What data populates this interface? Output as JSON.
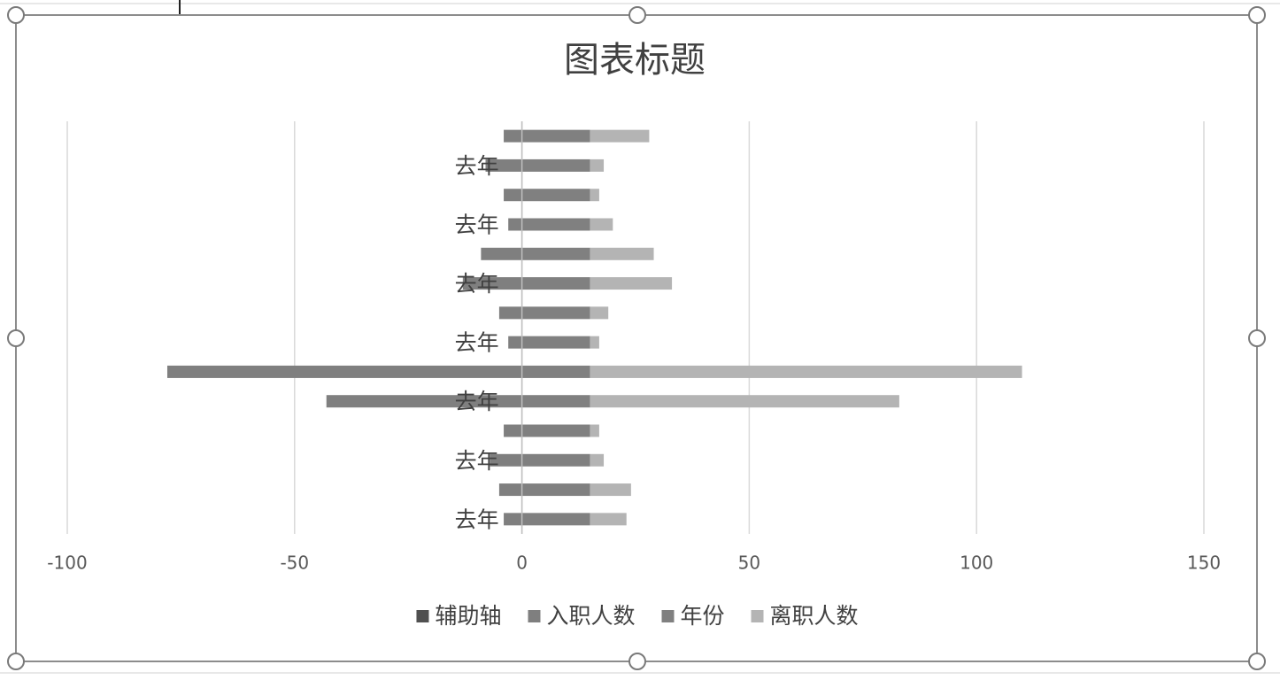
{
  "chart_data": {
    "type": "bar",
    "orientation": "horizontal",
    "stacked": true,
    "title": "图表标题",
    "categories": [
      null,
      "去年",
      null,
      "去年",
      null,
      "去年",
      null,
      "去年",
      null,
      "去年",
      null,
      "去年",
      null,
      "去年"
    ],
    "series": [
      {
        "name": "辅助轴",
        "color": "#505050",
        "values": [
          0,
          0,
          0,
          0,
          0,
          0,
          0,
          0,
          0,
          0,
          0,
          0,
          0,
          0
        ]
      },
      {
        "name": "入职人数",
        "color": "#7f7f7f",
        "values": [
          -4,
          -8,
          -4,
          -3,
          -9,
          -13,
          -5,
          -3,
          -78,
          -43,
          -4,
          -7,
          -5,
          -4
        ]
      },
      {
        "name": "年份",
        "color": "#808080",
        "values": [
          15,
          15,
          15,
          15,
          15,
          15,
          15,
          15,
          15,
          15,
          15,
          15,
          15,
          15
        ]
      },
      {
        "name": "离职人数",
        "color": "#b4b4b4",
        "values": [
          13,
          3,
          2,
          5,
          14,
          18,
          4,
          2,
          95,
          68,
          2,
          3,
          9,
          8
        ]
      }
    ],
    "xlim": [
      -100,
      150
    ],
    "xticks": [
      -100,
      -50,
      0,
      50,
      100,
      150
    ],
    "grid": true,
    "legend": "bottom"
  }
}
